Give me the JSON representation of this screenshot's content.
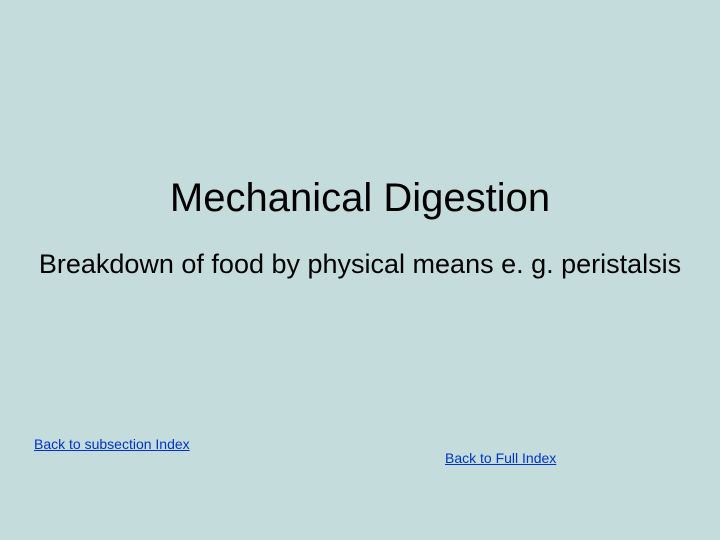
{
  "slide": {
    "title": "Mechanical Digestion",
    "body": "Breakdown of food by physical means e. g. peristalsis",
    "link_subsection": "Back to subsection Index",
    "link_full": "Back to Full  Index",
    "colors": {
      "background": "#c4dcdb",
      "text": "#000000",
      "link": "#0033cc"
    },
    "fonts": {
      "title_size": 40,
      "body_size": 27,
      "link_size": 14,
      "family": "Arial"
    }
  }
}
